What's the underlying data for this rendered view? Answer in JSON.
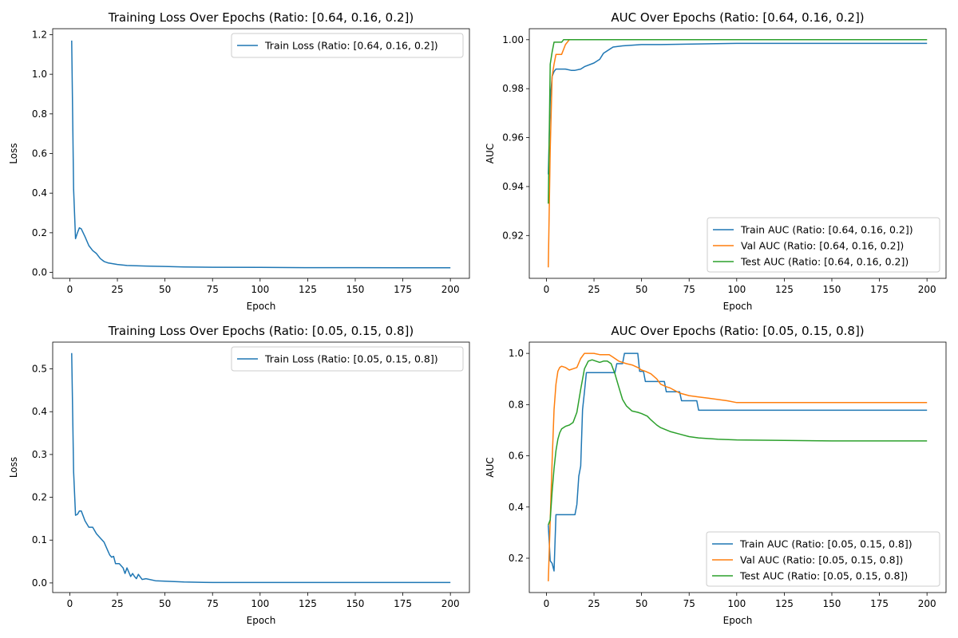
{
  "chart_data": [
    {
      "type": "line",
      "title": "Training Loss Over Epochs (Ratio: [0.64, 0.16, 0.2])",
      "xlabel": "Epoch",
      "ylabel": "Loss",
      "xlim": [
        -9,
        210
      ],
      "ylim": [
        -0.03,
        1.23
      ],
      "xticks": [
        0,
        25,
        50,
        75,
        100,
        125,
        150,
        175,
        200
      ],
      "yticks": [
        0.0,
        0.2,
        0.4,
        0.6,
        0.8,
        1.0,
        1.2
      ],
      "ytick_labels": [
        "0.0",
        "0.2",
        "0.4",
        "0.6",
        "0.8",
        "1.0",
        "1.2"
      ],
      "legend_position": "upper right",
      "series": [
        {
          "name": "Train Loss (Ratio: [0.64, 0.16, 0.2])",
          "color": "#1f77b4",
          "x": [
            1,
            2,
            3,
            4,
            5,
            6,
            8,
            10,
            12,
            14,
            16,
            18,
            20,
            25,
            30,
            40,
            50,
            60,
            75,
            100,
            125,
            150,
            175,
            200
          ],
          "y": [
            1.17,
            0.42,
            0.17,
            0.2,
            0.225,
            0.22,
            0.18,
            0.135,
            0.11,
            0.095,
            0.07,
            0.055,
            0.048,
            0.04,
            0.035,
            0.032,
            0.03,
            0.027,
            0.026,
            0.025,
            0.024,
            0.024,
            0.023,
            0.023
          ]
        }
      ]
    },
    {
      "type": "line",
      "title": "AUC Over Epochs (Ratio: [0.64, 0.16, 0.2])",
      "xlabel": "Epoch",
      "ylabel": "AUC",
      "xlim": [
        -9,
        210
      ],
      "ylim": [
        0.9025,
        1.0045
      ],
      "xticks": [
        0,
        25,
        50,
        75,
        100,
        125,
        150,
        175,
        200
      ],
      "yticks": [
        0.92,
        0.94,
        0.96,
        0.98,
        1.0
      ],
      "ytick_labels": [
        "0.92",
        "0.94",
        "0.96",
        "0.98",
        "1.00"
      ],
      "legend_position": "lower right",
      "series": [
        {
          "name": "Train AUC (Ratio: [0.64, 0.16, 0.2])",
          "color": "#1f77b4",
          "x": [
            1,
            2,
            3,
            4,
            5,
            8,
            10,
            13,
            15,
            18,
            20,
            25,
            28,
            30,
            35,
            40,
            50,
            60,
            100,
            200
          ],
          "y": [
            0.945,
            0.975,
            0.985,
            0.987,
            0.988,
            0.988,
            0.988,
            0.9875,
            0.9875,
            0.988,
            0.989,
            0.9905,
            0.992,
            0.9945,
            0.997,
            0.9975,
            0.998,
            0.998,
            0.9985,
            0.9985
          ]
        },
        {
          "name": "Val AUC (Ratio: [0.64, 0.16, 0.2])",
          "color": "#ff7f0e",
          "x": [
            1,
            2,
            3,
            4,
            5,
            8,
            10,
            12,
            200
          ],
          "y": [
            0.907,
            0.955,
            0.985,
            0.99,
            0.994,
            0.994,
            0.998,
            1.0,
            1.0
          ]
        },
        {
          "name": "Test AUC (Ratio: [0.64, 0.16, 0.2])",
          "color": "#2ca02c",
          "x": [
            1,
            2,
            3,
            4,
            6,
            8,
            9,
            200
          ],
          "y": [
            0.933,
            0.99,
            0.995,
            0.999,
            0.999,
            0.999,
            1.0,
            1.0
          ]
        }
      ]
    },
    {
      "type": "line",
      "title": "Training Loss Over Epochs (Ratio: [0.05, 0.15, 0.8])",
      "xlabel": "Epoch",
      "ylabel": "Loss",
      "xlim": [
        -9,
        210
      ],
      "ylim": [
        -0.0225,
        0.5625
      ],
      "xticks": [
        0,
        25,
        50,
        75,
        100,
        125,
        150,
        175,
        200
      ],
      "yticks": [
        0.0,
        0.1,
        0.2,
        0.3,
        0.4,
        0.5
      ],
      "ytick_labels": [
        "0.0",
        "0.1",
        "0.2",
        "0.3",
        "0.4",
        "0.5"
      ],
      "legend_position": "upper right",
      "series": [
        {
          "name": "Train Loss (Ratio: [0.05, 0.15, 0.8])",
          "color": "#1f77b4",
          "x": [
            1,
            2,
            3,
            4,
            5,
            6,
            8,
            10,
            12,
            14,
            16,
            18,
            20,
            21,
            22,
            23,
            24,
            26,
            28,
            29,
            30,
            32,
            33,
            34,
            35,
            36,
            38,
            40,
            45,
            50,
            60,
            75,
            100,
            150,
            200
          ],
          "y": [
            0.537,
            0.26,
            0.158,
            0.16,
            0.168,
            0.168,
            0.145,
            0.13,
            0.13,
            0.115,
            0.105,
            0.095,
            0.075,
            0.065,
            0.06,
            0.062,
            0.045,
            0.045,
            0.035,
            0.022,
            0.035,
            0.015,
            0.022,
            0.015,
            0.01,
            0.02,
            0.008,
            0.01,
            0.005,
            0.004,
            0.002,
            0.001,
            0.001,
            0.001,
            0.001
          ]
        }
      ]
    },
    {
      "type": "line",
      "title": "AUC Over Epochs (Ratio: [0.05, 0.15, 0.8])",
      "xlabel": "Epoch",
      "ylabel": "AUC",
      "xlim": [
        -9,
        210
      ],
      "ylim": [
        0.066,
        1.044
      ],
      "xticks": [
        0,
        25,
        50,
        75,
        100,
        125,
        150,
        175,
        200
      ],
      "yticks": [
        0.2,
        0.4,
        0.6,
        0.8,
        1.0
      ],
      "ytick_labels": [
        "0.2",
        "0.4",
        "0.6",
        "0.8",
        "1.0"
      ],
      "legend_position": "lower right",
      "series": [
        {
          "name": "Train AUC (Ratio: [0.05, 0.15, 0.8])",
          "color": "#1f77b4",
          "x": [
            1,
            2,
            3,
            4,
            5,
            15,
            16,
            17,
            18,
            19,
            20,
            21,
            36,
            37,
            40,
            41,
            48,
            49,
            51,
            52,
            62,
            63,
            66,
            67,
            70,
            71,
            79,
            80,
            200
          ],
          "y": [
            0.33,
            0.19,
            0.18,
            0.15,
            0.37,
            0.37,
            0.41,
            0.52,
            0.56,
            0.78,
            0.85,
            0.925,
            0.925,
            0.96,
            0.96,
            1.0,
            1.0,
            0.93,
            0.93,
            0.89,
            0.89,
            0.85,
            0.85,
            0.85,
            0.85,
            0.815,
            0.815,
            0.778,
            0.778
          ]
        },
        {
          "name": "Val AUC (Ratio: [0.05, 0.15, 0.8])",
          "color": "#ff7f0e",
          "x": [
            1,
            2,
            3,
            4,
            5,
            6,
            7,
            8,
            10,
            12,
            14,
            16,
            18,
            20,
            22,
            25,
            28,
            30,
            33,
            35,
            38,
            40,
            42,
            45,
            48,
            50,
            52,
            55,
            58,
            60,
            63,
            65,
            70,
            75,
            80,
            85,
            90,
            95,
            100,
            200
          ],
          "y": [
            0.11,
            0.35,
            0.58,
            0.78,
            0.88,
            0.93,
            0.945,
            0.95,
            0.945,
            0.935,
            0.94,
            0.945,
            0.98,
            1.0,
            1.0,
            1.0,
            0.995,
            0.995,
            0.995,
            0.985,
            0.97,
            0.965,
            0.96,
            0.955,
            0.945,
            0.935,
            0.93,
            0.92,
            0.9,
            0.88,
            0.87,
            0.865,
            0.845,
            0.835,
            0.83,
            0.825,
            0.82,
            0.815,
            0.808,
            0.808
          ]
        },
        {
          "name": "Test AUC (Ratio: [0.05, 0.15, 0.8])",
          "color": "#2ca02c",
          "x": [
            1,
            2,
            3,
            4,
            5,
            6,
            7,
            8,
            10,
            12,
            14,
            16,
            18,
            20,
            22,
            24,
            26,
            28,
            30,
            32,
            34,
            36,
            38,
            40,
            42,
            45,
            48,
            50,
            53,
            55,
            58,
            60,
            65,
            70,
            75,
            80,
            90,
            100,
            125,
            150,
            200
          ],
          "y": [
            0.33,
            0.35,
            0.46,
            0.55,
            0.62,
            0.665,
            0.69,
            0.705,
            0.715,
            0.72,
            0.73,
            0.77,
            0.86,
            0.94,
            0.97,
            0.975,
            0.97,
            0.965,
            0.97,
            0.97,
            0.96,
            0.92,
            0.87,
            0.82,
            0.795,
            0.775,
            0.77,
            0.765,
            0.755,
            0.74,
            0.72,
            0.71,
            0.695,
            0.685,
            0.675,
            0.67,
            0.665,
            0.662,
            0.66,
            0.658,
            0.658
          ]
        }
      ]
    }
  ]
}
